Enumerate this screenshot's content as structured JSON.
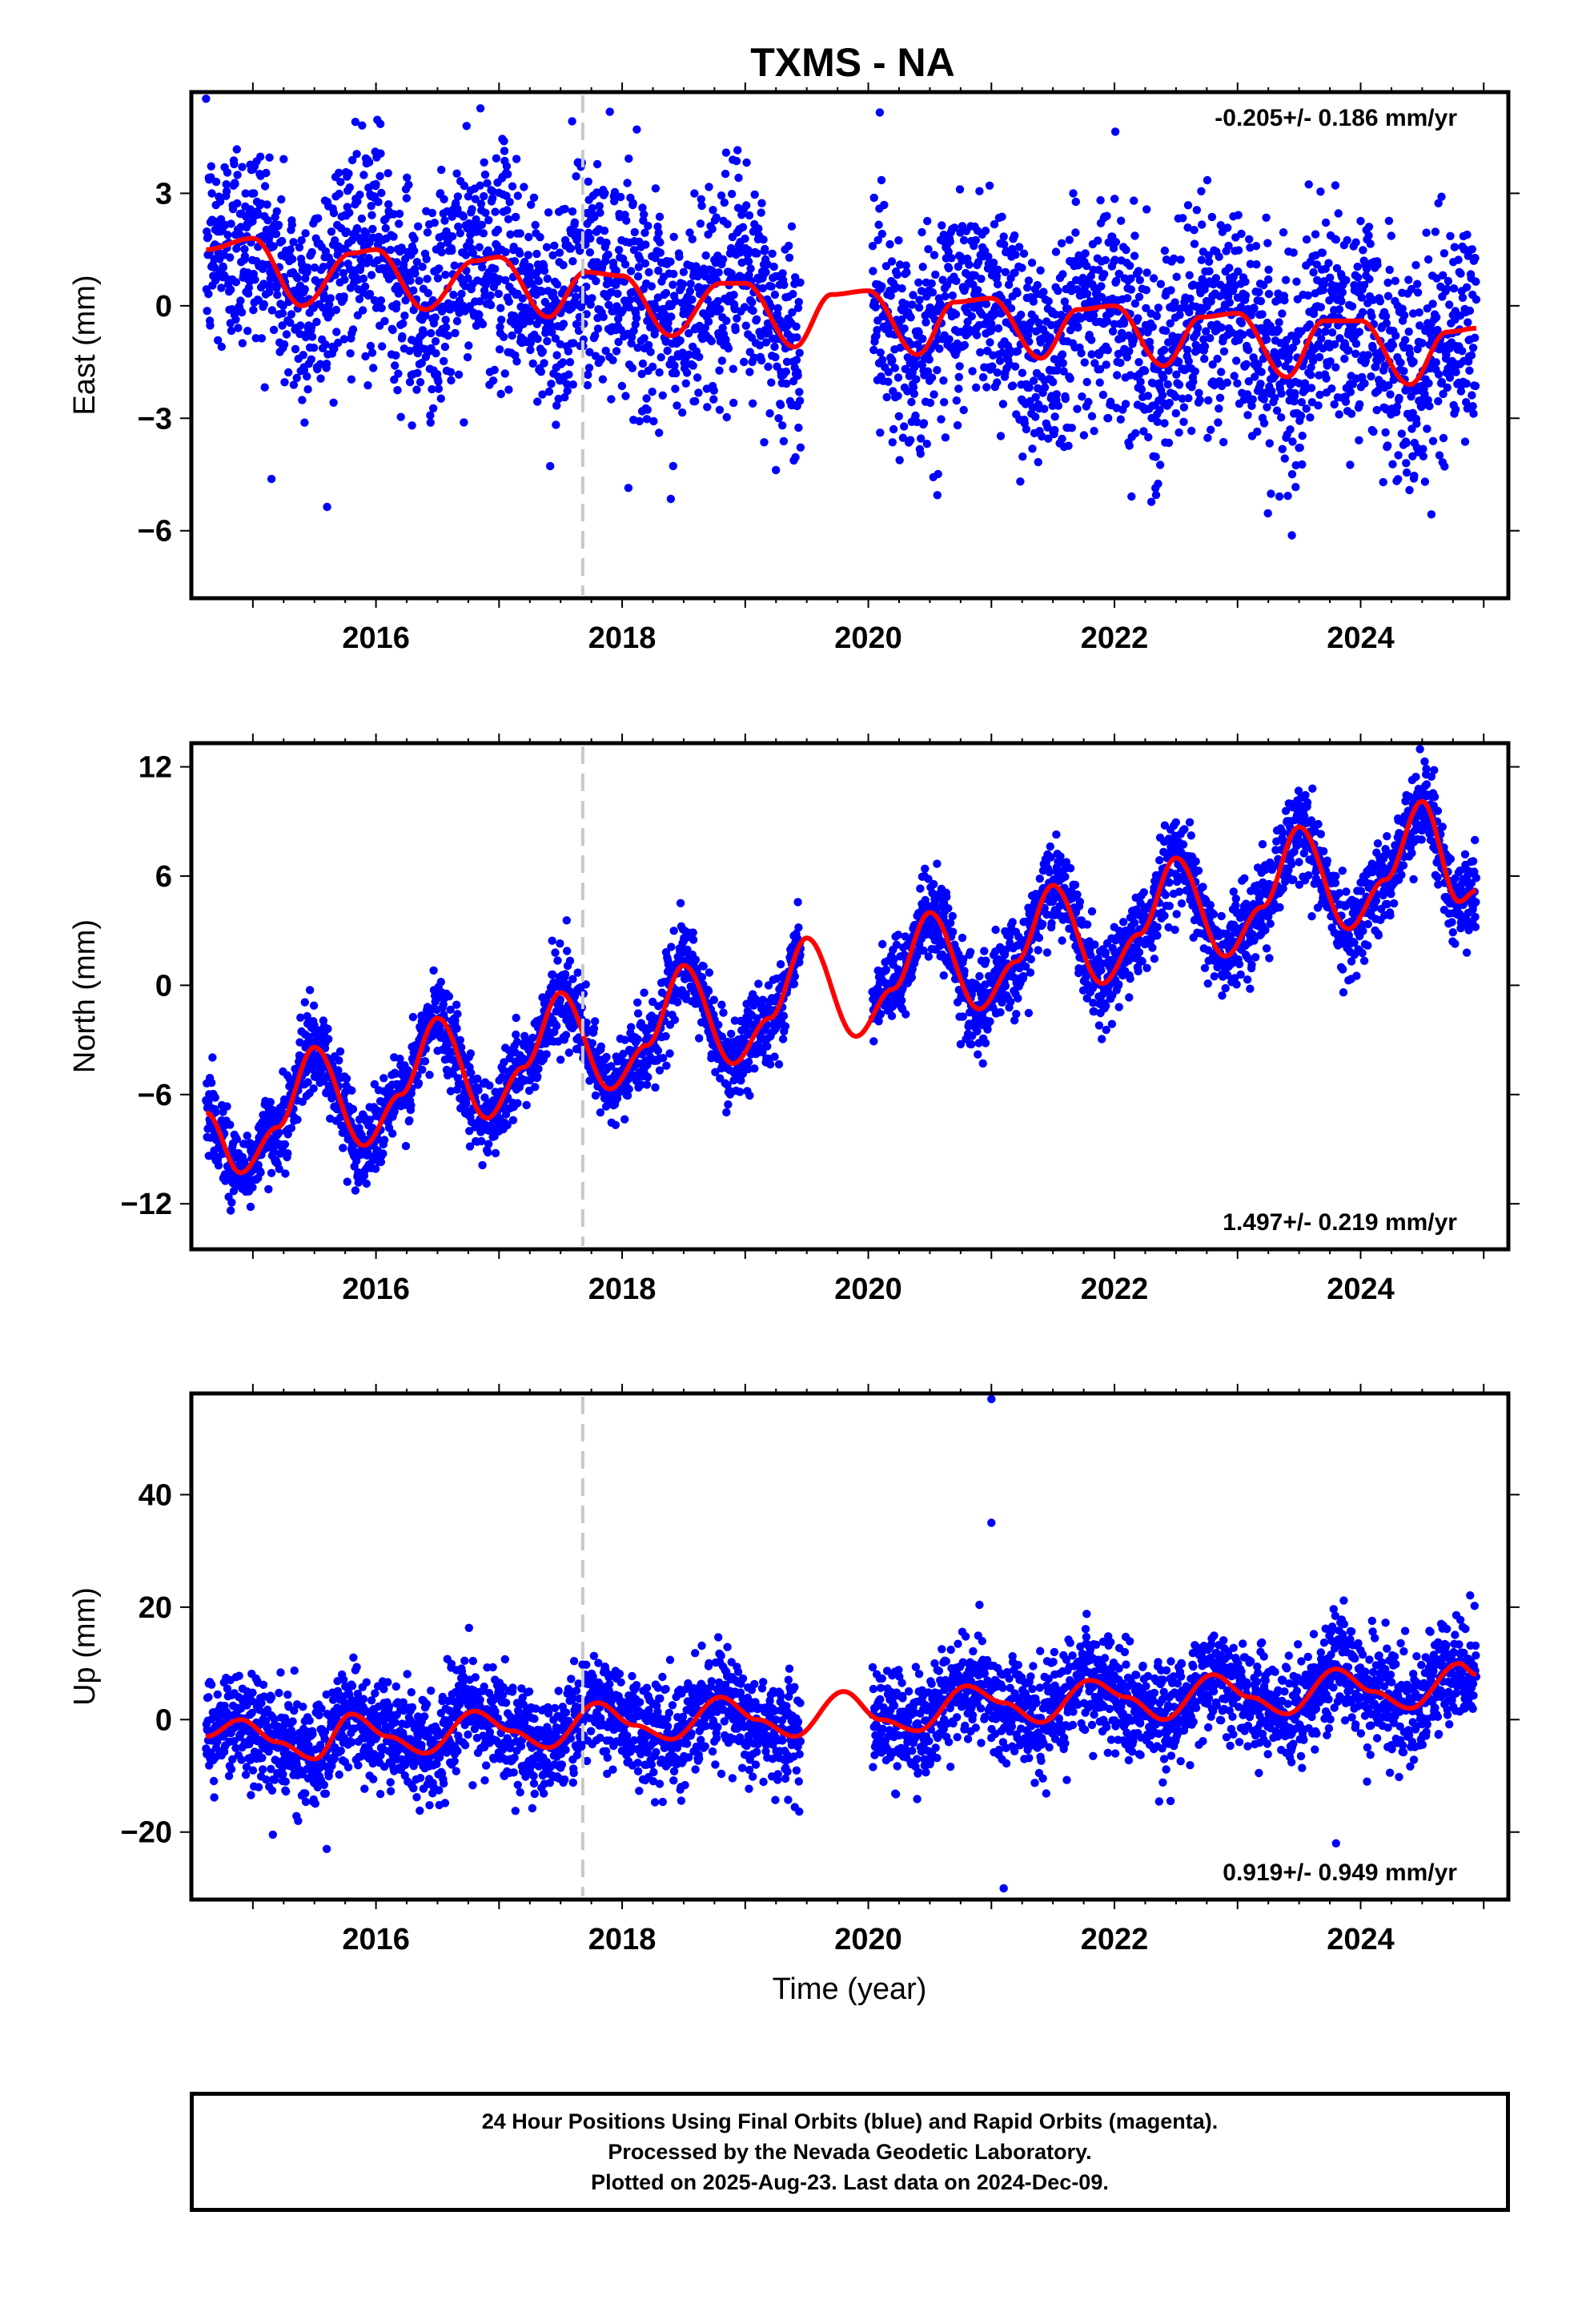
{
  "chart_data": [
    {
      "type": "scatter",
      "title": "TXMS - NA",
      "ylabel": "East (mm)",
      "xlim": [
        2014.5,
        2025.2
      ],
      "ylim": [
        -7.8,
        5.7
      ],
      "yticks": [
        3,
        0,
        -3,
        -6
      ],
      "ytick_labels": [
        "3",
        "0",
        "−3",
        "−6"
      ],
      "xticks": [
        2016,
        2018,
        2020,
        2022,
        2024
      ],
      "xtick_labels": [
        "2016",
        "2018",
        "2020",
        "2022",
        "2024"
      ],
      "rate_label": "-0.205+/- 0.186 mm/yr",
      "rate_position": "top-right",
      "event_line_x": 2017.68,
      "series": [
        {
          "role": "daily_positions",
          "color": "#0000ff",
          "x_range": [
            2014.62,
            2024.94
          ],
          "gap": [
            2019.45,
            2020.03
          ],
          "trend_per_yr": -0.205,
          "scatter_sd": 1.45
        },
        {
          "role": "model_fit",
          "color": "#ff0000",
          "x": [
            2014.62,
            2015.0,
            2015.4,
            2015.8,
            2016.0,
            2016.4,
            2016.8,
            2017.0,
            2017.4,
            2017.7,
            2018.0,
            2018.4,
            2018.8,
            2019.0,
            2019.4,
            2019.7,
            2020.0,
            2020.4,
            2020.7,
            2021.0,
            2021.4,
            2021.7,
            2022.0,
            2022.4,
            2022.7,
            2023.0,
            2023.4,
            2023.7,
            2024.0,
            2024.4,
            2024.7,
            2024.94
          ],
          "y": [
            1.5,
            1.8,
            0.0,
            1.4,
            1.5,
            -0.1,
            1.2,
            1.3,
            -0.3,
            0.9,
            0.8,
            -0.8,
            0.6,
            0.6,
            -1.1,
            0.3,
            0.4,
            -1.3,
            0.1,
            0.2,
            -1.4,
            -0.1,
            0.0,
            -1.6,
            -0.3,
            -0.2,
            -1.9,
            -0.4,
            -0.4,
            -2.1,
            -0.7,
            -0.6
          ]
        }
      ]
    },
    {
      "type": "scatter",
      "ylabel": "North (mm)",
      "xlim": [
        2014.5,
        2025.2
      ],
      "ylim": [
        -14.5,
        13.3
      ],
      "yticks": [
        12,
        6,
        0,
        -6,
        -12
      ],
      "ytick_labels": [
        "12",
        "6",
        "0",
        "−6",
        "−12"
      ],
      "xticks": [
        2016,
        2018,
        2020,
        2022,
        2024
      ],
      "xtick_labels": [
        "2016",
        "2018",
        "2020",
        "2022",
        "2024"
      ],
      "rate_label": "1.497+/- 0.219 mm/yr",
      "rate_position": "bottom-right",
      "event_line_x": 2017.68,
      "series": [
        {
          "role": "daily_positions",
          "color": "#0000ff",
          "x_range": [
            2014.62,
            2024.94
          ],
          "gap": [
            2019.45,
            2020.03
          ],
          "trend_per_yr": 1.497,
          "scatter_sd": 1.15
        },
        {
          "role": "model_fit",
          "color": "#ff0000",
          "x": [
            2014.62,
            2014.9,
            2015.2,
            2015.5,
            2015.9,
            2016.2,
            2016.5,
            2016.9,
            2017.2,
            2017.5,
            2017.9,
            2018.2,
            2018.5,
            2018.9,
            2019.2,
            2019.5,
            2019.9,
            2020.2,
            2020.5,
            2020.9,
            2021.2,
            2021.5,
            2021.9,
            2022.2,
            2022.5,
            2022.9,
            2023.2,
            2023.5,
            2023.9,
            2024.2,
            2024.5,
            2024.8,
            2024.94
          ],
          "y": [
            -7.0,
            -10.3,
            -7.8,
            -3.4,
            -8.8,
            -6.0,
            -1.8,
            -7.3,
            -4.5,
            -0.4,
            -5.7,
            -3.3,
            1.1,
            -4.3,
            -1.8,
            2.6,
            -2.8,
            -0.2,
            4.0,
            -1.3,
            1.3,
            5.5,
            0.1,
            2.8,
            7.0,
            1.6,
            4.3,
            8.7,
            3.1,
            5.8,
            10.1,
            4.6,
            5.2
          ]
        }
      ]
    },
    {
      "type": "scatter",
      "ylabel": "Up (mm)",
      "xlabel": "Time (year)",
      "xlim": [
        2014.5,
        2025.2
      ],
      "ylim": [
        -32,
        58
      ],
      "yticks": [
        40,
        20,
        0,
        -20
      ],
      "ytick_labels": [
        "40",
        "20",
        "0",
        "−20"
      ],
      "xticks": [
        2016,
        2018,
        2020,
        2022,
        2024
      ],
      "xtick_labels": [
        "2016",
        "2018",
        "2020",
        "2022",
        "2024"
      ],
      "rate_label": "0.919+/- 0.949 mm/yr",
      "rate_position": "bottom-right",
      "event_line_x": 2017.68,
      "series": [
        {
          "role": "daily_positions",
          "color": "#0000ff",
          "x_range": [
            2014.62,
            2024.94
          ],
          "gap": [
            2019.45,
            2020.03
          ],
          "trend_per_yr": 0.919,
          "scatter_sd": 4.6,
          "outliers": [
            {
              "x": 2021.0,
              "y": 57.0
            },
            {
              "x": 2021.0,
              "y": 35.0
            },
            {
              "x": 2021.1,
              "y": -30.0
            },
            {
              "x": 2023.8,
              "y": -22.0
            },
            {
              "x": 2015.6,
              "y": -23.0
            }
          ]
        },
        {
          "role": "model_fit",
          "color": "#ff0000",
          "x": [
            2014.62,
            2014.9,
            2015.2,
            2015.5,
            2015.8,
            2016.1,
            2016.4,
            2016.8,
            2017.1,
            2017.4,
            2017.8,
            2018.1,
            2018.4,
            2018.8,
            2019.1,
            2019.4,
            2019.8,
            2020.1,
            2020.4,
            2020.8,
            2021.1,
            2021.4,
            2021.8,
            2022.1,
            2022.4,
            2022.8,
            2023.1,
            2023.4,
            2023.8,
            2024.1,
            2024.4,
            2024.8,
            2024.94
          ],
          "y": [
            -3.0,
            0.0,
            -4.0,
            -7.0,
            1.0,
            -3.0,
            -6.0,
            1.5,
            -2.0,
            -5.0,
            3.0,
            -1.0,
            -3.5,
            4.0,
            0.0,
            -3.0,
            5.0,
            0.0,
            -2.0,
            6.0,
            3.0,
            -0.5,
            7.0,
            4.0,
            0.0,
            8.0,
            4.0,
            1.0,
            9.0,
            5.0,
            2.0,
            10.0,
            8.0
          ]
        }
      ]
    }
  ],
  "footer": {
    "line1": "24 Hour Positions Using Final Orbits (blue) and Rapid Orbits (magenta).",
    "line2": "Processed by the Nevada Geodetic Laboratory.",
    "line3": "Plotted on 2025-Aug-23. Last data on 2024-Dec-09."
  }
}
